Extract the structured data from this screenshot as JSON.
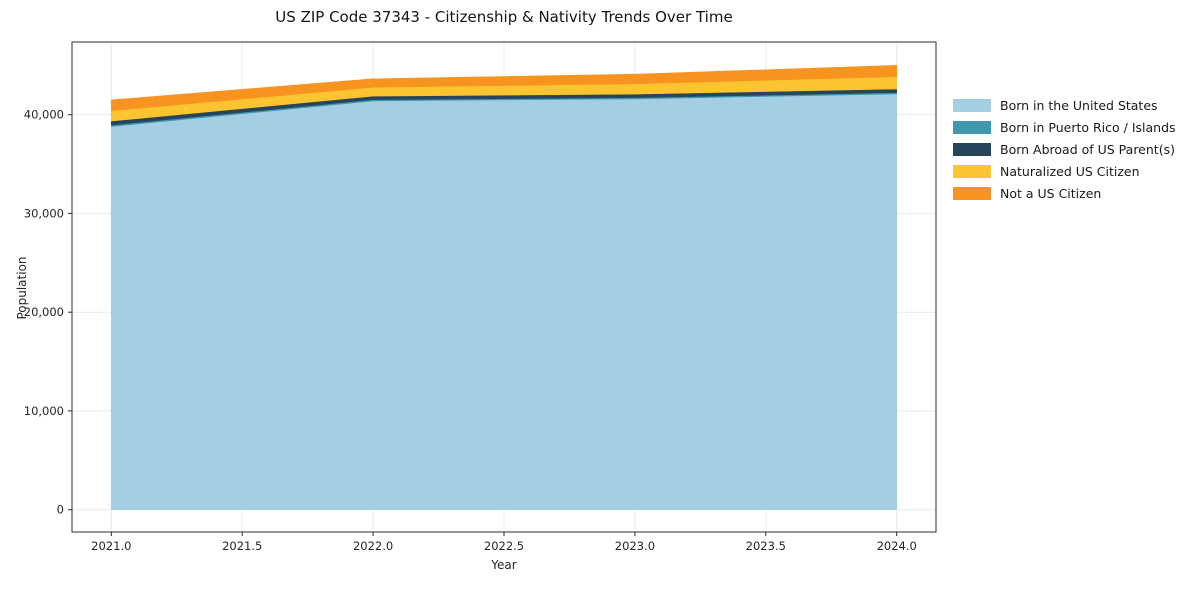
{
  "title": "US ZIP Code 37343 - Citizenship & Nativity Trends Over Time",
  "chart_data": {
    "type": "area",
    "stacked": true,
    "title": "US ZIP Code 37343 - Citizenship & Nativity Trends Over Time",
    "xlabel": "Year",
    "ylabel": "Population",
    "x": [
      2021,
      2022,
      2023,
      2024
    ],
    "series": [
      {
        "name": "Born in the United States",
        "color": "#a3cee3",
        "values": [
          38800,
          41400,
          41600,
          42100
        ]
      },
      {
        "name": "Born in Puerto Rico / Islands",
        "color": "#3f97ad",
        "values": [
          150,
          130,
          130,
          140
        ]
      },
      {
        "name": "Born Abroad of US Parent(s)",
        "color": "#27455a",
        "values": [
          400,
          350,
          350,
          360
        ]
      },
      {
        "name": "Naturalized US Citizen",
        "color": "#fcc430",
        "values": [
          1050,
          900,
          1050,
          1250
        ]
      },
      {
        "name": "Not a US Citizen",
        "color": "#f79420",
        "values": [
          1100,
          850,
          970,
          1150
        ]
      }
    ],
    "totals": [
      41500,
      43630,
      44100,
      45000
    ],
    "xlim": [
      2020.85,
      2024.15
    ],
    "ylim": [
      -2260,
      47360
    ],
    "xticks": [
      "2021.0",
      "2021.5",
      "2022.0",
      "2022.5",
      "2023.0",
      "2023.5",
      "2024.0"
    ],
    "xtick_values": [
      2021,
      2021.5,
      2022,
      2022.5,
      2023,
      2023.5,
      2024
    ],
    "yticks": [
      "0",
      "10,000",
      "20,000",
      "30,000",
      "40,000"
    ],
    "ytick_values": [
      0,
      10000,
      20000,
      30000,
      40000
    ],
    "grid": true,
    "legend_position": "right"
  }
}
